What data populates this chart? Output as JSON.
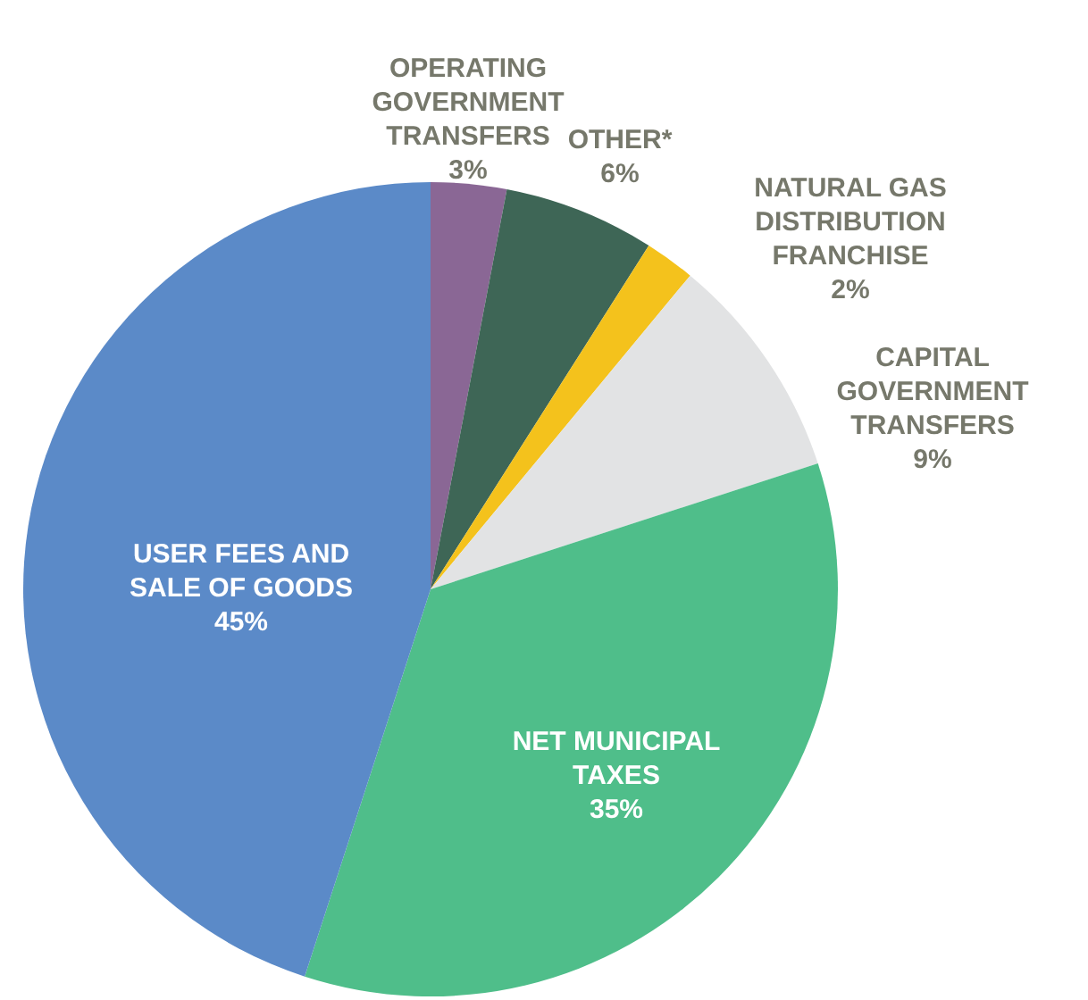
{
  "chart_data": {
    "type": "pie",
    "categories": [
      "OPERATING GOVERNMENT TRANSFERS",
      "OTHER*",
      "NATURAL GAS DISTRIBUTION FRANCHISE",
      "CAPITAL GOVERNMENT TRANSFERS",
      "NET MUNICIPAL TAXES",
      "USER FEES AND SALE OF GOODS"
    ],
    "values": [
      3,
      6,
      2,
      9,
      35,
      45
    ],
    "colors": [
      "#8a6795",
      "#3e6656",
      "#f4c21c",
      "#e2e3e4",
      "#4fbe8a",
      "#5b8ac8"
    ],
    "value_labels": [
      "3%",
      "6%",
      "2%",
      "9%",
      "35%",
      "45%"
    ]
  }
}
